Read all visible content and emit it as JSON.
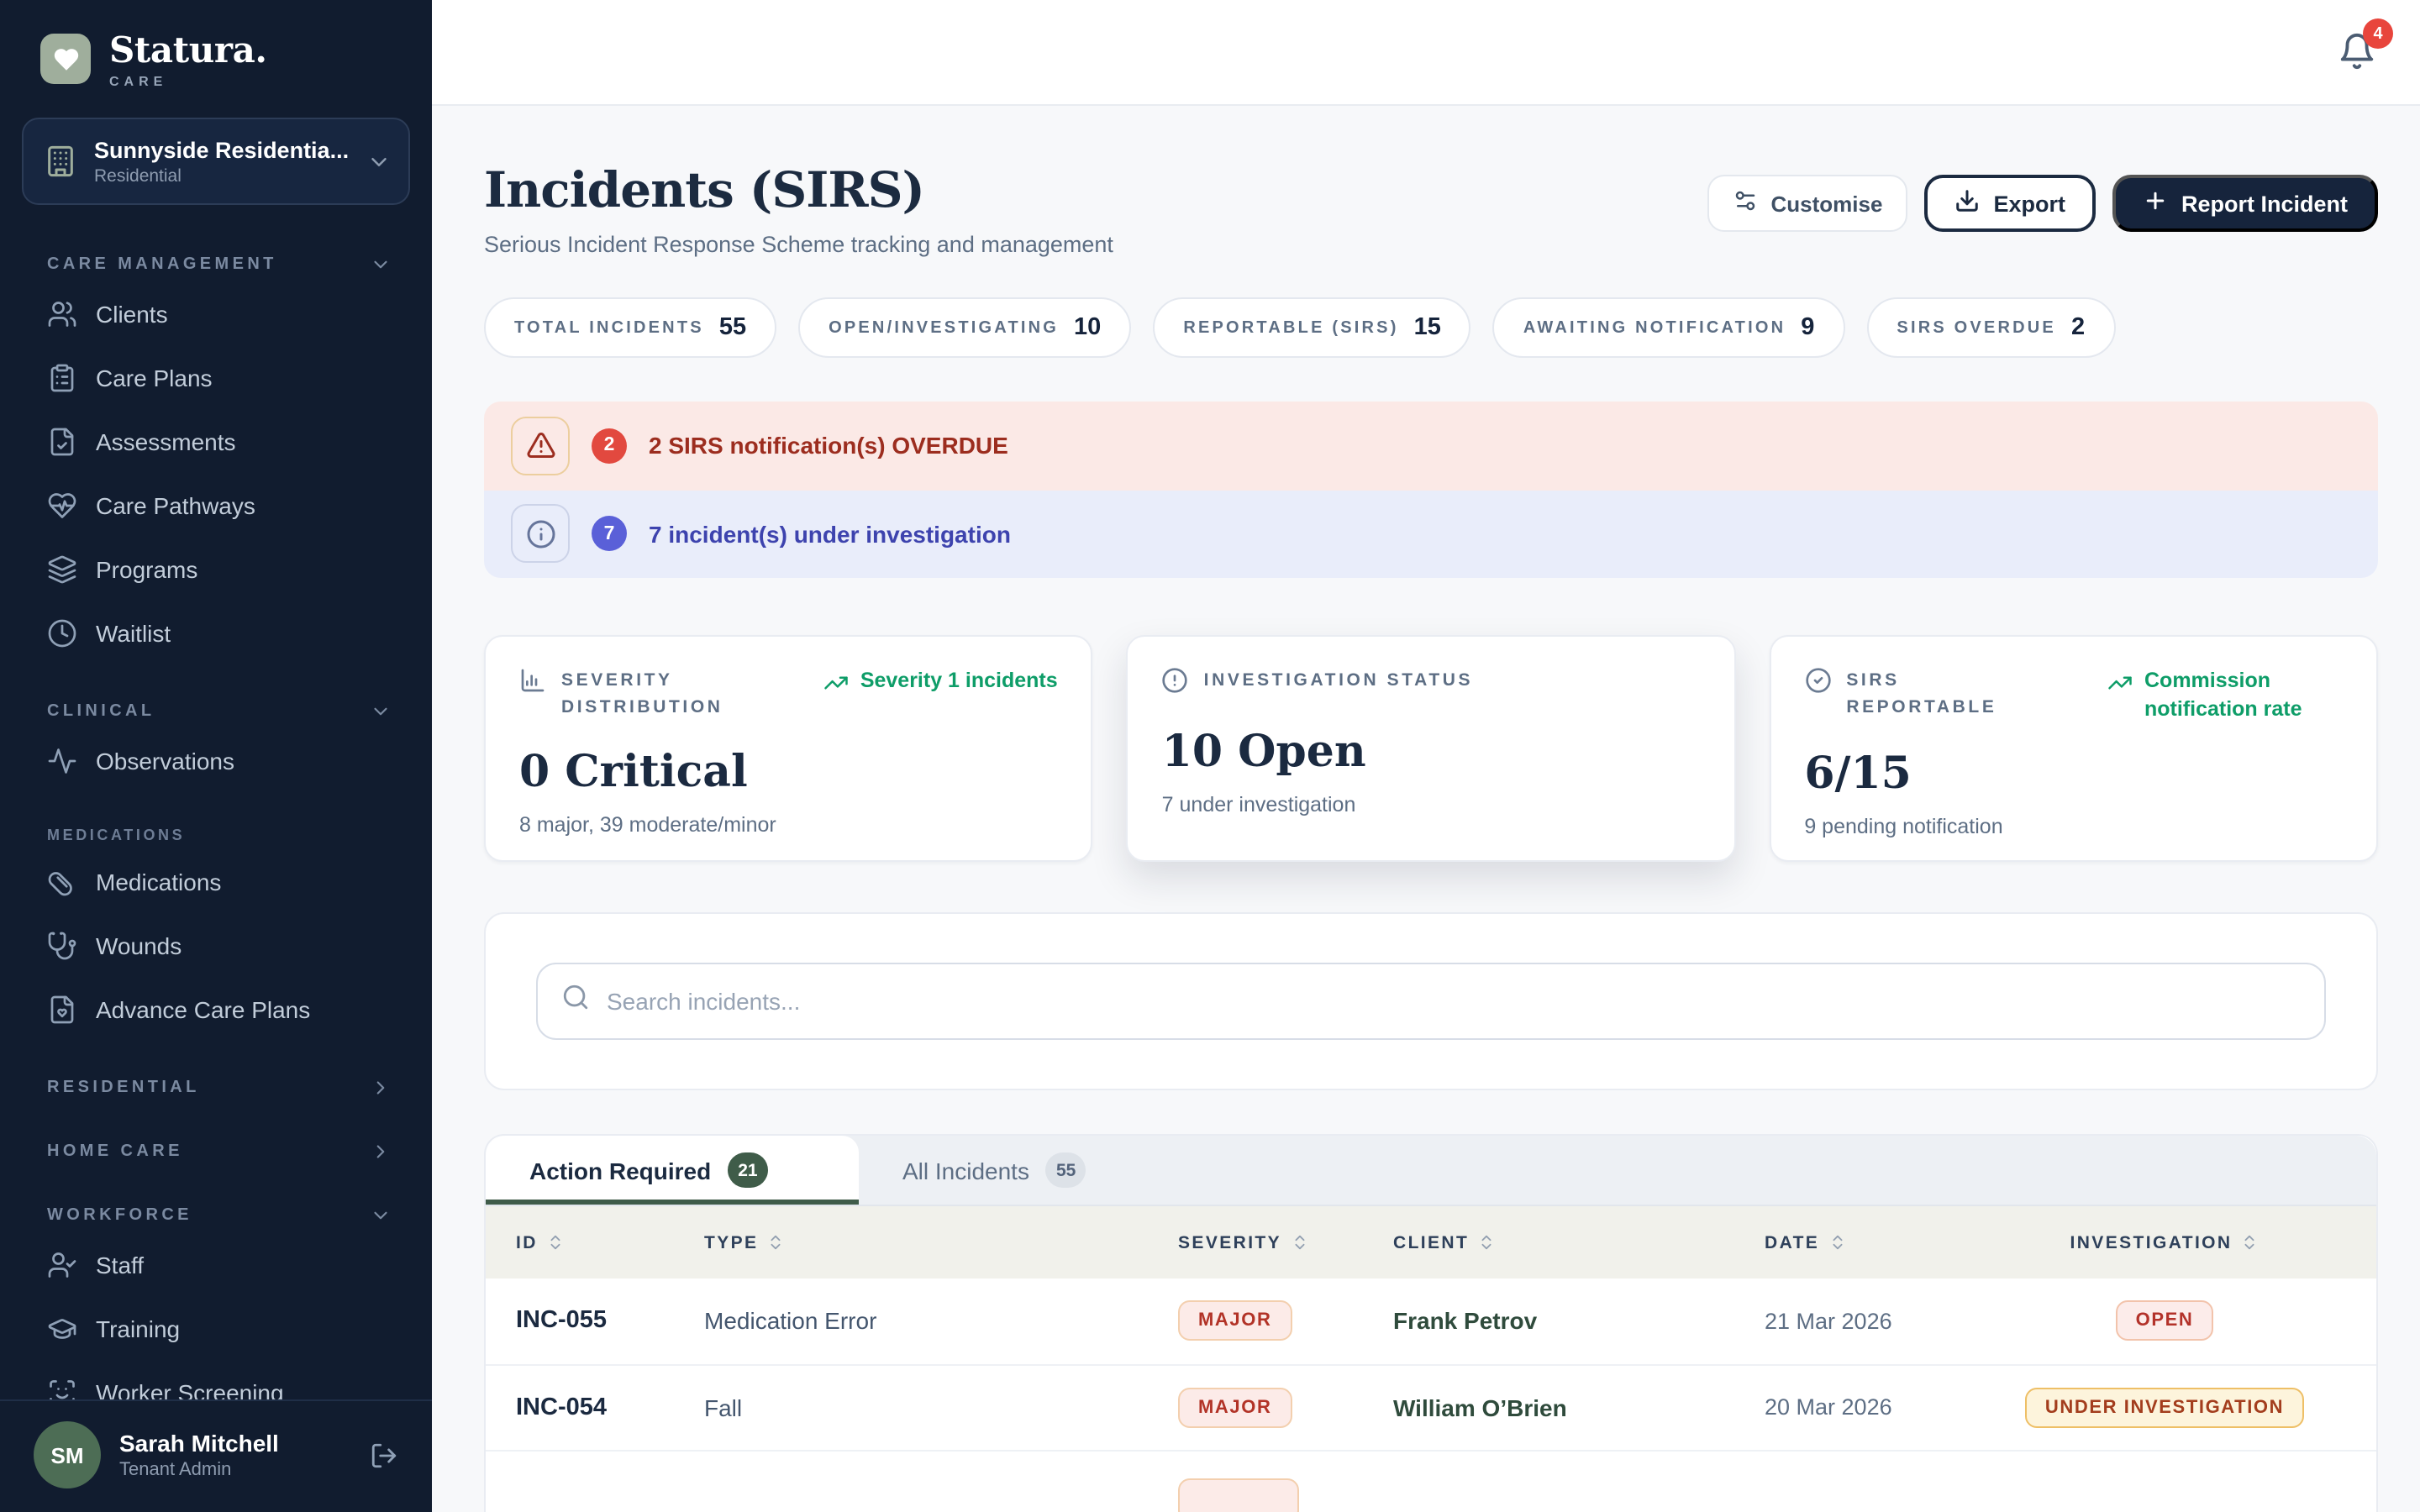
{
  "brand": {
    "name": "Statura.",
    "sub": "CARE",
    "logo_icon": "heart-icon"
  },
  "facility": {
    "name": "Sunnyside Residentia...",
    "type": "Residential",
    "icon": "building-icon"
  },
  "sidebar": {
    "sections": [
      {
        "label": "CARE MANAGEMENT",
        "chevron": "down",
        "items": [
          {
            "icon": "users-icon",
            "label": "Clients"
          },
          {
            "icon": "clipboard-icon",
            "label": "Care Plans"
          },
          {
            "icon": "file-check-icon",
            "label": "Assessments"
          },
          {
            "icon": "heart-pulse-icon",
            "label": "Care Pathways"
          },
          {
            "icon": "layers-icon",
            "label": "Programs"
          },
          {
            "icon": "clock-icon",
            "label": "Waitlist"
          }
        ]
      },
      {
        "label": "CLINICAL",
        "chevron": "down",
        "items": [
          {
            "icon": "activity-icon",
            "label": "Observations"
          }
        ]
      },
      {
        "label": "MEDICATIONS",
        "small": true,
        "items": [
          {
            "icon": "pill-icon",
            "label": "Medications"
          },
          {
            "icon": "stethoscope-icon",
            "label": "Wounds"
          },
          {
            "icon": "file-heart-icon",
            "label": "Advance Care Plans"
          }
        ]
      },
      {
        "label": "RESIDENTIAL",
        "chevron": "right",
        "items": []
      },
      {
        "label": "HOME CARE",
        "chevron": "right",
        "items": []
      },
      {
        "label": "WORKFORCE",
        "chevron": "down",
        "items": [
          {
            "icon": "user-check-icon",
            "label": "Staff"
          },
          {
            "icon": "graduation-cap-icon",
            "label": "Training"
          },
          {
            "icon": "scan-face-icon",
            "label": "Worker Screening"
          }
        ]
      }
    ]
  },
  "user": {
    "initials": "SM",
    "name": "Sarah Mitchell",
    "role": "Tenant Admin"
  },
  "topbar": {
    "notification_count": "4"
  },
  "header": {
    "title": "Incidents (SIRS)",
    "subtitle": "Serious Incident Response Scheme tracking and management",
    "customise_label": "Customise",
    "export_label": "Export",
    "report_label": "Report Incident"
  },
  "stats": [
    {
      "label": "TOTAL INCIDENTS",
      "value": "55"
    },
    {
      "label": "OPEN/INVESTIGATING",
      "value": "10"
    },
    {
      "label": "REPORTABLE (SIRS)",
      "value": "15"
    },
    {
      "label": "AWAITING NOTIFICATION",
      "value": "9"
    },
    {
      "label": "SIRS OVERDUE",
      "value": "2"
    }
  ],
  "alerts": [
    {
      "type": "danger",
      "icon": "alert-triangle-icon",
      "badge": "2",
      "text": "2 SIRS notification(s) OVERDUE"
    },
    {
      "type": "info",
      "icon": "info-icon",
      "badge": "7",
      "text": "7 incident(s) under investigation"
    }
  ],
  "cards": [
    {
      "icon": "bar-chart-icon",
      "label": "SEVERITY DISTRIBUTION",
      "trend": "Severity 1 incidents",
      "value": "0 Critical",
      "sub": "8 major, 39 moderate/minor",
      "elevated": false
    },
    {
      "icon": "alert-circle-icon",
      "label": "INVESTIGATION STATUS",
      "trend": "",
      "value": "10 Open",
      "sub": "7 under investigation",
      "elevated": true
    },
    {
      "icon": "check-circle-icon",
      "label": "SIRS REPORTABLE",
      "trend": "Commission notification rate",
      "value": "6/15",
      "sub": "9 pending notification",
      "elevated": false
    }
  ],
  "search": {
    "placeholder": "Search incidents..."
  },
  "tabs": [
    {
      "label": "Action Required",
      "count": "21",
      "active": true
    },
    {
      "label": "All Incidents",
      "count": "55",
      "active": false
    }
  ],
  "table": {
    "columns": [
      "ID",
      "TYPE",
      "SEVERITY",
      "CLIENT",
      "DATE",
      "INVESTIGATION"
    ],
    "rows": [
      {
        "id": "INC-055",
        "type": "Medication Error",
        "severity": "MAJOR",
        "client": "Frank Petrov",
        "date": "21 Mar 2026",
        "investigation": "OPEN"
      },
      {
        "id": "INC-054",
        "type": "Fall",
        "severity": "MAJOR",
        "client": "William O’Brien",
        "date": "20 Mar 2026",
        "investigation": "UNDER INVESTIGATION"
      },
      {
        "partial": true
      }
    ]
  }
}
